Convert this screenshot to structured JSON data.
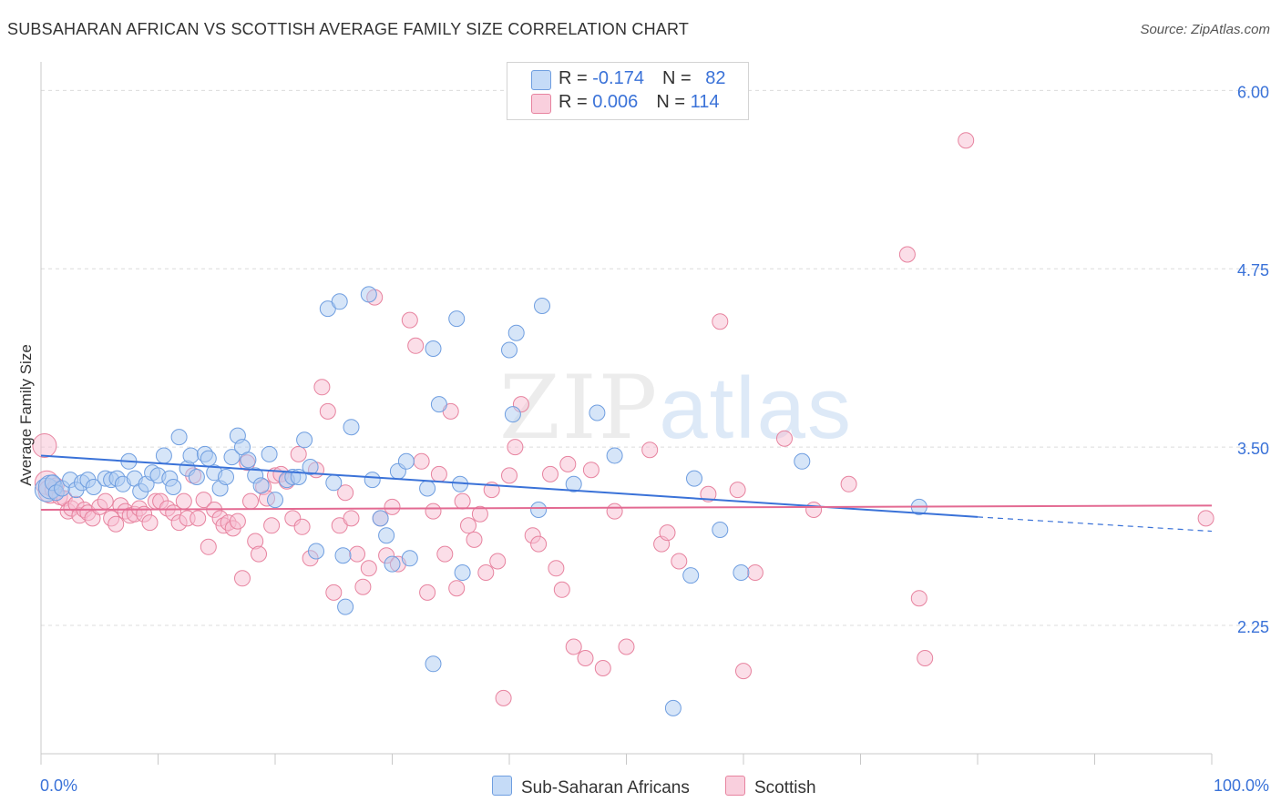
{
  "title": "SUBSAHARAN AFRICAN VS SCOTTISH AVERAGE FAMILY SIZE CORRELATION CHART",
  "source": "Source: ZipAtlas.com",
  "watermark": {
    "zip": "ZIP",
    "atlas": "atlas"
  },
  "legend": {
    "rows": [
      {
        "r_label": "R = ",
        "r_value": "-0.174",
        "n_label": "N = ",
        "n_value": "82"
      },
      {
        "r_label": "R = ",
        "r_value": "0.006",
        "n_label": "N = ",
        "n_value": "114"
      }
    ]
  },
  "bottom_legend": {
    "series1": "Sub-Saharan Africans",
    "series2": "Scottish"
  },
  "colors": {
    "blue_fill": "#aecbf2",
    "blue_stroke": "#6f9ee0",
    "blue_line": "#3a72d8",
    "pink_fill": "#f7bed1",
    "pink_stroke": "#e7839f",
    "pink_line": "#e36a92",
    "grid": "#dcdcdc",
    "tick_label": "#3a72d8",
    "axis_label": "#333333"
  },
  "chart_data": {
    "type": "scatter",
    "title": "SUBSAHARAN AFRICAN VS SCOTTISH AVERAGE FAMILY SIZE CORRELATION CHART",
    "xlabel": "",
    "ylabel": "Average Family Size",
    "xlim": [
      0,
      100
    ],
    "ylim": [
      1.35,
      6.2
    ],
    "x_tick_labels": [
      "0.0%",
      "100.0%"
    ],
    "y_ticks": [
      2.25,
      3.5,
      4.75,
      6.0
    ],
    "y_tick_labels": [
      "2.25",
      "3.50",
      "4.75",
      "6.00"
    ],
    "grid": "horizontal dashed",
    "legend_position": "top-center",
    "series": [
      {
        "name": "Sub-Saharan Africans",
        "color": "#aecbf2",
        "trend": {
          "x": [
            0,
            80
          ],
          "y": [
            3.44,
            3.01
          ],
          "dashed_extension": {
            "x": [
              80,
              100
            ],
            "y": [
              3.01,
              2.91
            ]
          }
        },
        "points": [
          [
            0.5,
            3.2
          ],
          [
            0.8,
            3.22
          ],
          [
            1.0,
            3.25
          ],
          [
            1.3,
            3.18
          ],
          [
            1.8,
            3.21
          ],
          [
            2.5,
            3.27
          ],
          [
            3.0,
            3.2
          ],
          [
            3.5,
            3.25
          ],
          [
            4.0,
            3.27
          ],
          [
            4.5,
            3.22
          ],
          [
            5.5,
            3.28
          ],
          [
            6.0,
            3.27
          ],
          [
            6.5,
            3.28
          ],
          [
            7.0,
            3.24
          ],
          [
            7.5,
            3.4
          ],
          [
            8.0,
            3.28
          ],
          [
            8.5,
            3.19
          ],
          [
            9.0,
            3.24
          ],
          [
            9.5,
            3.32
          ],
          [
            10.0,
            3.3
          ],
          [
            10.5,
            3.44
          ],
          [
            11.0,
            3.28
          ],
          [
            11.3,
            3.22
          ],
          [
            11.8,
            3.57
          ],
          [
            12.5,
            3.35
          ],
          [
            12.8,
            3.44
          ],
          [
            13.3,
            3.29
          ],
          [
            14.0,
            3.45
          ],
          [
            14.3,
            3.42
          ],
          [
            14.8,
            3.32
          ],
          [
            15.3,
            3.21
          ],
          [
            15.8,
            3.29
          ],
          [
            16.3,
            3.43
          ],
          [
            16.8,
            3.58
          ],
          [
            17.2,
            3.5
          ],
          [
            17.7,
            3.41
          ],
          [
            18.3,
            3.3
          ],
          [
            18.8,
            3.23
          ],
          [
            19.5,
            3.45
          ],
          [
            20.0,
            3.13
          ],
          [
            21.0,
            3.27
          ],
          [
            21.5,
            3.29
          ],
          [
            22.0,
            3.29
          ],
          [
            22.5,
            3.55
          ],
          [
            23.0,
            3.36
          ],
          [
            23.5,
            2.77
          ],
          [
            24.5,
            4.47
          ],
          [
            25.5,
            4.52
          ],
          [
            25.0,
            3.25
          ],
          [
            25.8,
            2.74
          ],
          [
            26.0,
            2.38
          ],
          [
            26.5,
            3.64
          ],
          [
            28.0,
            4.57
          ],
          [
            28.3,
            3.27
          ],
          [
            29.0,
            3.0
          ],
          [
            29.5,
            2.88
          ],
          [
            30.0,
            2.68
          ],
          [
            30.5,
            3.33
          ],
          [
            31.2,
            3.4
          ],
          [
            31.5,
            2.72
          ],
          [
            33.0,
            3.21
          ],
          [
            33.5,
            1.98
          ],
          [
            33.5,
            4.19
          ],
          [
            34.0,
            3.8
          ],
          [
            35.5,
            4.4
          ],
          [
            35.8,
            3.24
          ],
          [
            36.0,
            2.62
          ],
          [
            40.0,
            4.18
          ],
          [
            40.3,
            3.73
          ],
          [
            40.6,
            4.3
          ],
          [
            42.5,
            3.06
          ],
          [
            42.8,
            4.49
          ],
          [
            45.5,
            3.24
          ],
          [
            47.5,
            3.74
          ],
          [
            49.0,
            3.44
          ],
          [
            54.0,
            1.67
          ],
          [
            55.5,
            2.6
          ],
          [
            55.8,
            3.28
          ],
          [
            58.0,
            2.92
          ],
          [
            59.8,
            2.62
          ],
          [
            65.0,
            3.4
          ],
          [
            75.0,
            3.08
          ]
        ]
      },
      {
        "name": "Scottish",
        "color": "#f7bed1",
        "trend": {
          "x": [
            0,
            100
          ],
          "y": [
            3.06,
            3.09
          ]
        },
        "points": [
          [
            0.3,
            3.51
          ],
          [
            0.5,
            3.25
          ],
          [
            0.8,
            3.19
          ],
          [
            1.0,
            3.2
          ],
          [
            1.3,
            3.23
          ],
          [
            1.6,
            3.15
          ],
          [
            2.0,
            3.14
          ],
          [
            2.3,
            3.05
          ],
          [
            2.6,
            3.07
          ],
          [
            3.0,
            3.1
          ],
          [
            3.3,
            3.02
          ],
          [
            3.7,
            3.06
          ],
          [
            4.0,
            3.04
          ],
          [
            4.4,
            3.0
          ],
          [
            5.0,
            3.08
          ],
          [
            5.5,
            3.12
          ],
          [
            6.0,
            3.0
          ],
          [
            6.4,
            2.96
          ],
          [
            6.8,
            3.09
          ],
          [
            7.2,
            3.05
          ],
          [
            7.6,
            3.02
          ],
          [
            8.0,
            3.03
          ],
          [
            8.4,
            3.07
          ],
          [
            8.8,
            3.03
          ],
          [
            9.3,
            2.97
          ],
          [
            9.8,
            3.12
          ],
          [
            10.2,
            3.12
          ],
          [
            10.8,
            3.07
          ],
          [
            11.3,
            3.04
          ],
          [
            11.8,
            2.97
          ],
          [
            12.2,
            3.12
          ],
          [
            12.5,
            3.0
          ],
          [
            13.0,
            3.3
          ],
          [
            13.4,
            3.0
          ],
          [
            13.9,
            3.13
          ],
          [
            14.3,
            2.8
          ],
          [
            14.8,
            3.06
          ],
          [
            15.3,
            3.0
          ],
          [
            15.6,
            2.95
          ],
          [
            16.0,
            2.97
          ],
          [
            16.4,
            2.93
          ],
          [
            16.8,
            2.98
          ],
          [
            17.2,
            2.58
          ],
          [
            17.6,
            3.39
          ],
          [
            17.9,
            3.12
          ],
          [
            18.3,
            2.84
          ],
          [
            18.6,
            2.75
          ],
          [
            19.0,
            3.22
          ],
          [
            19.3,
            3.14
          ],
          [
            19.7,
            2.95
          ],
          [
            20.0,
            3.3
          ],
          [
            20.5,
            3.31
          ],
          [
            21.0,
            3.26
          ],
          [
            21.5,
            3.0
          ],
          [
            22.0,
            3.45
          ],
          [
            22.3,
            2.94
          ],
          [
            23.0,
            2.72
          ],
          [
            23.5,
            3.34
          ],
          [
            24.0,
            3.92
          ],
          [
            24.5,
            3.75
          ],
          [
            25.0,
            2.48
          ],
          [
            25.5,
            2.95
          ],
          [
            26.0,
            3.18
          ],
          [
            26.5,
            3.0
          ],
          [
            27.0,
            2.75
          ],
          [
            27.5,
            2.52
          ],
          [
            28.0,
            2.65
          ],
          [
            28.5,
            4.55
          ],
          [
            29.0,
            3.0
          ],
          [
            29.5,
            2.74
          ],
          [
            30.0,
            3.08
          ],
          [
            30.5,
            2.68
          ],
          [
            31.5,
            4.39
          ],
          [
            32.0,
            4.21
          ],
          [
            32.5,
            3.4
          ],
          [
            33.0,
            2.48
          ],
          [
            33.5,
            3.05
          ],
          [
            34.0,
            3.31
          ],
          [
            34.5,
            2.75
          ],
          [
            35.0,
            3.75
          ],
          [
            35.5,
            2.51
          ],
          [
            36.0,
            3.12
          ],
          [
            36.5,
            2.95
          ],
          [
            37.0,
            2.85
          ],
          [
            37.5,
            3.03
          ],
          [
            38.0,
            2.62
          ],
          [
            38.5,
            3.2
          ],
          [
            39.0,
            2.7
          ],
          [
            39.5,
            1.74
          ],
          [
            40.0,
            3.3
          ],
          [
            40.5,
            3.5
          ],
          [
            41.0,
            3.8
          ],
          [
            42.0,
            2.88
          ],
          [
            42.5,
            2.82
          ],
          [
            43.5,
            3.31
          ],
          [
            44.0,
            2.65
          ],
          [
            44.5,
            2.5
          ],
          [
            45.0,
            3.38
          ],
          [
            45.5,
            2.1
          ],
          [
            46.5,
            2.02
          ],
          [
            47.0,
            3.34
          ],
          [
            48.0,
            1.95
          ],
          [
            49.0,
            3.05
          ],
          [
            50.0,
            2.1
          ],
          [
            52.0,
            3.48
          ],
          [
            53.0,
            2.82
          ],
          [
            53.5,
            2.9
          ],
          [
            54.5,
            2.7
          ],
          [
            57.0,
            3.17
          ],
          [
            58.0,
            4.38
          ],
          [
            59.5,
            3.2
          ],
          [
            60.0,
            1.93
          ],
          [
            61.0,
            2.62
          ],
          [
            63.5,
            3.56
          ],
          [
            66.0,
            3.06
          ],
          [
            69.0,
            3.24
          ],
          [
            74.0,
            4.85
          ],
          [
            75.0,
            2.44
          ],
          [
            75.5,
            2.02
          ],
          [
            79.0,
            5.65
          ],
          [
            99.5,
            3.0
          ]
        ]
      }
    ]
  }
}
